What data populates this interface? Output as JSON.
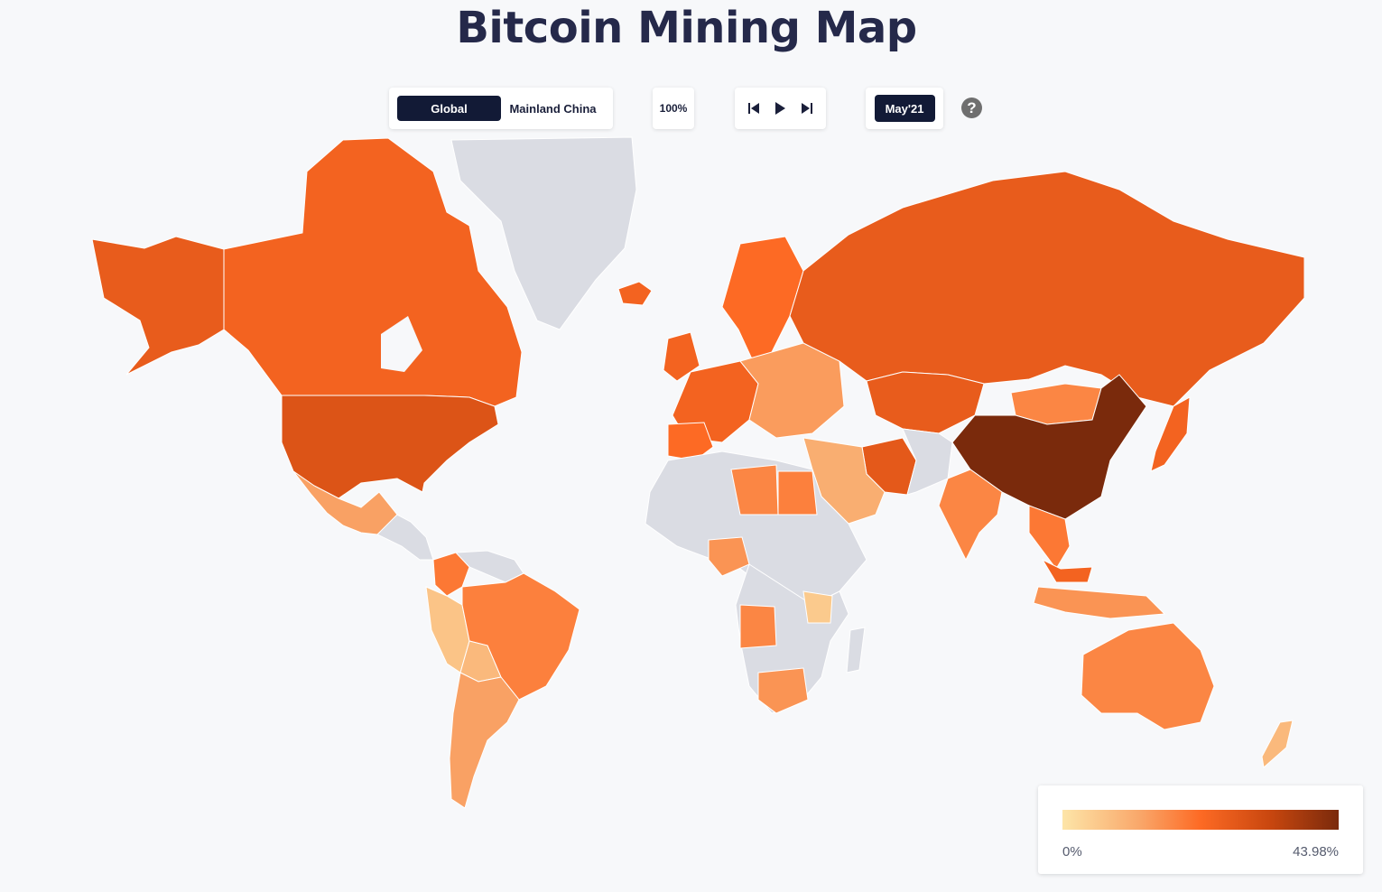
{
  "title": "Bitcoin Mining Map",
  "region_toggle": {
    "options": [
      "Global",
      "Mainland China"
    ],
    "selected": "Global"
  },
  "zoom_label": "100%",
  "playback": {
    "icons": [
      "skip-to-start-icon",
      "play-icon",
      "skip-to-end-icon"
    ]
  },
  "date_label": "May'21",
  "help_label": "?",
  "legend": {
    "min_label": "0%",
    "max_label": "43.98%",
    "colors": [
      "#fde5a8",
      "#f9a76a",
      "#fd6a24",
      "#c9470f",
      "#7a2a0c"
    ]
  },
  "colors": {
    "no_data": "#dadce3",
    "ocean": "#f7f8fa",
    "accent": "#121a36",
    "title": "#25294a"
  },
  "map": {
    "type": "choropleth",
    "metric": "share of global bitcoin hashrate",
    "period": "May'21",
    "max_share_percent": 43.98,
    "regions": [
      {
        "name": "China",
        "level": 1.0
      },
      {
        "name": "United States",
        "level": 0.66
      },
      {
        "name": "Russia",
        "level": 0.6
      },
      {
        "name": "Kazakhstan",
        "level": 0.6
      },
      {
        "name": "Canada",
        "level": 0.55
      },
      {
        "name": "Iran",
        "level": 0.62
      },
      {
        "name": "Alaska",
        "level": 0.6
      },
      {
        "name": "Malaysia",
        "level": 0.55
      },
      {
        "name": "Germany",
        "level": 0.55
      },
      {
        "name": "Ireland",
        "level": 0.55
      },
      {
        "name": "Norway",
        "level": 0.5
      },
      {
        "name": "Brazil",
        "level": 0.42
      },
      {
        "name": "Australia",
        "level": 0.4
      },
      {
        "name": "Mongolia",
        "level": 0.4
      },
      {
        "name": "India",
        "level": 0.4
      },
      {
        "name": "Libya",
        "level": 0.4
      },
      {
        "name": "Egypt",
        "level": 0.42
      },
      {
        "name": "Angola",
        "level": 0.4
      },
      {
        "name": "Thailand",
        "level": 0.45
      },
      {
        "name": "Japan",
        "level": 0.55
      },
      {
        "name": "Venezuela",
        "level": 0.45
      },
      {
        "name": "Nigeria",
        "level": 0.35
      },
      {
        "name": "South Africa",
        "level": 0.35
      },
      {
        "name": "Mexico",
        "level": 0.3
      },
      {
        "name": "Argentina",
        "level": 0.3
      },
      {
        "name": "Indonesia",
        "level": 0.35
      },
      {
        "name": "Saudi Arabia",
        "level": 0.2
      },
      {
        "name": "Peru",
        "level": 0.15
      },
      {
        "name": "Bolivia",
        "level": 0.2
      },
      {
        "name": "Chile",
        "level": 0.25
      },
      {
        "name": "New Zealand",
        "level": 0.2
      },
      {
        "name": "Tanzania",
        "level": 0.12
      }
    ]
  }
}
